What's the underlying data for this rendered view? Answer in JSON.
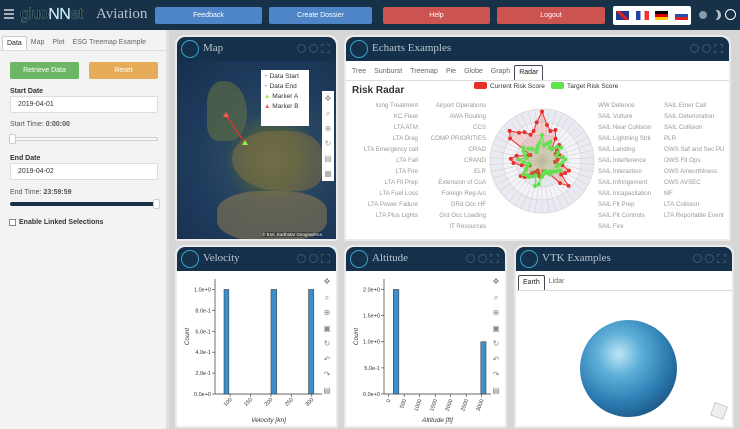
{
  "header": {
    "app_title": "Aviation",
    "logo": "glucNNet",
    "buttons": {
      "feedback": "Feedback",
      "dossier": "Create Dossier",
      "help": "Help",
      "logout": "Logout"
    },
    "languages": [
      "English",
      "French",
      "German",
      "Russian"
    ],
    "colors": {
      "blue": "#4d85c7",
      "red": "#cb5350",
      "bg": "#173248"
    }
  },
  "sidebar": {
    "tabs": [
      "Data",
      "Map",
      "Plot",
      "ESG Treemap Example"
    ],
    "retrieve": "Retrieve Data",
    "reset": "Reset",
    "start_date_label": "Start Date",
    "start_date": "2019-04-01",
    "start_time_label": "Start Time:",
    "start_time": "0:00:00",
    "start_time_fraction": 0,
    "end_date_label": "End Date",
    "end_date": "2019-04-02",
    "end_time_label": "End Time:",
    "end_time": "23:59:59",
    "end_time_fraction": 1,
    "linked_label": "Enable Linked Selections",
    "linked_checked": false
  },
  "map": {
    "title": "Map",
    "legend": [
      "Data Start",
      "Data End",
      "Marker A",
      "Marker B"
    ],
    "attribution": "© Esri, Earthstar Geographics"
  },
  "echarts": {
    "title": "Echarts Examples",
    "tabs": [
      "Tree",
      "Sunburst",
      "Treemap",
      "Pie",
      "Globe",
      "Graph",
      "Radar"
    ],
    "active_tab": "Radar"
  },
  "chart_data": [
    {
      "type": "radar",
      "title": "Risk Radar",
      "legend_position": "top",
      "indicators": [
        "WW Defence",
        "SAIL Vulture",
        "SAIL Near Collision",
        "SAIL Lightning Strk",
        "SAIL Landing",
        "SAIL Interference",
        "SAIL Interaction",
        "SAIL Infringement",
        "SAIL Incapacitation",
        "SAIL Flt Prep",
        "SAIL Flt Controls",
        "SAIL Fire",
        "SAIL Emer Call",
        "SAIL Deterioration",
        "SAIL Collision",
        "PLR",
        "OWS Saf and Sec PU",
        "OWS Flt Ops",
        "OWS Airworthiness",
        "OWS AVSEC",
        "MF",
        "LTA Collision",
        "LTA Reportable Event",
        "LTA Plus Lights",
        "LTA Power Failure",
        "LTA Fuel Loss",
        "LTA Flt Prep",
        "LTA Fire",
        "LTA Fall",
        "LTA Emergency call",
        "LTA Drag",
        "LTA ATM",
        "KC Fleet",
        "Icing Treatment",
        "IT Resources",
        "Grd Occ Loading",
        "GRd Occ HF",
        "Foreign Reg A/c",
        "Extension of CoA",
        "ELR",
        "CRAND",
        "CRAD",
        "COMP PRIORITIES",
        "CCS",
        "AWA Routing",
        "Airport Operations"
      ],
      "series": [
        {
          "name": "Current Risk Score",
          "color": "#e8302a",
          "values": [
            95,
            70,
            60,
            65,
            50,
            30,
            45,
            35,
            30,
            35,
            40,
            30,
            25,
            40,
            55,
            50,
            45,
            70,
            55,
            30,
            25,
            20,
            20,
            30,
            30,
            25,
            20,
            25,
            30,
            45,
            50,
            35,
            25,
            40,
            55,
            60,
            50,
            30,
            25,
            75,
            85,
            70,
            65,
            55,
            60,
            75
          ]
        },
        {
          "name": "Target Risk Score",
          "color": "#5ee34a",
          "values": [
            50,
            30,
            35,
            40,
            30,
            30,
            40,
            45,
            35,
            30,
            40,
            45,
            40,
            35,
            30,
            40,
            35,
            30,
            25,
            30,
            25,
            20,
            25,
            30,
            45,
            50,
            30,
            35,
            40,
            40,
            45,
            35,
            30,
            25,
            35,
            45,
            30,
            35,
            40,
            45,
            35,
            30,
            20,
            25,
            30,
            35
          ]
        }
      ],
      "max": 100
    },
    {
      "type": "histogram",
      "title": "Velocity",
      "xlabel": "Velocity [kn]",
      "ylabel": "Count",
      "xlim": [
        63,
        325
      ],
      "ylim": [
        0,
        1.1
      ],
      "x_ticks": [
        100,
        150,
        200,
        250,
        300
      ],
      "y_ticks": [
        "0.0e+0",
        "2.0e-1",
        "4.0e-1",
        "6.0e-1",
        "8.0e-1",
        "1.0e+0"
      ],
      "bars": [
        {
          "x0": 85,
          "x1": 97,
          "count": 1
        },
        {
          "x0": 200,
          "x1": 214,
          "count": 1
        },
        {
          "x0": 292,
          "x1": 305,
          "count": 1
        }
      ],
      "color": "#3d8fcb"
    },
    {
      "type": "histogram",
      "title": "Altitude",
      "xlabel": "Altitude [ft]",
      "ylabel": "Count",
      "xlim": [
        -150,
        3300
      ],
      "ylim": [
        0,
        2.2
      ],
      "x_ticks": [
        0,
        500,
        1000,
        1500,
        2000,
        2500,
        3000
      ],
      "y_ticks": [
        "0.0e+0",
        "5.0e-1",
        "1.0e+0",
        "1.5e+0",
        "2.0e+0"
      ],
      "bars": [
        {
          "x0": 150,
          "x1": 330,
          "count": 2
        },
        {
          "x0": 2970,
          "x1": 3140,
          "count": 1
        }
      ],
      "color": "#3d8fcb"
    }
  ],
  "vtk": {
    "title": "VTK Examples",
    "tabs": [
      "Earth",
      "Lidar"
    ],
    "active_tab": "Earth"
  }
}
